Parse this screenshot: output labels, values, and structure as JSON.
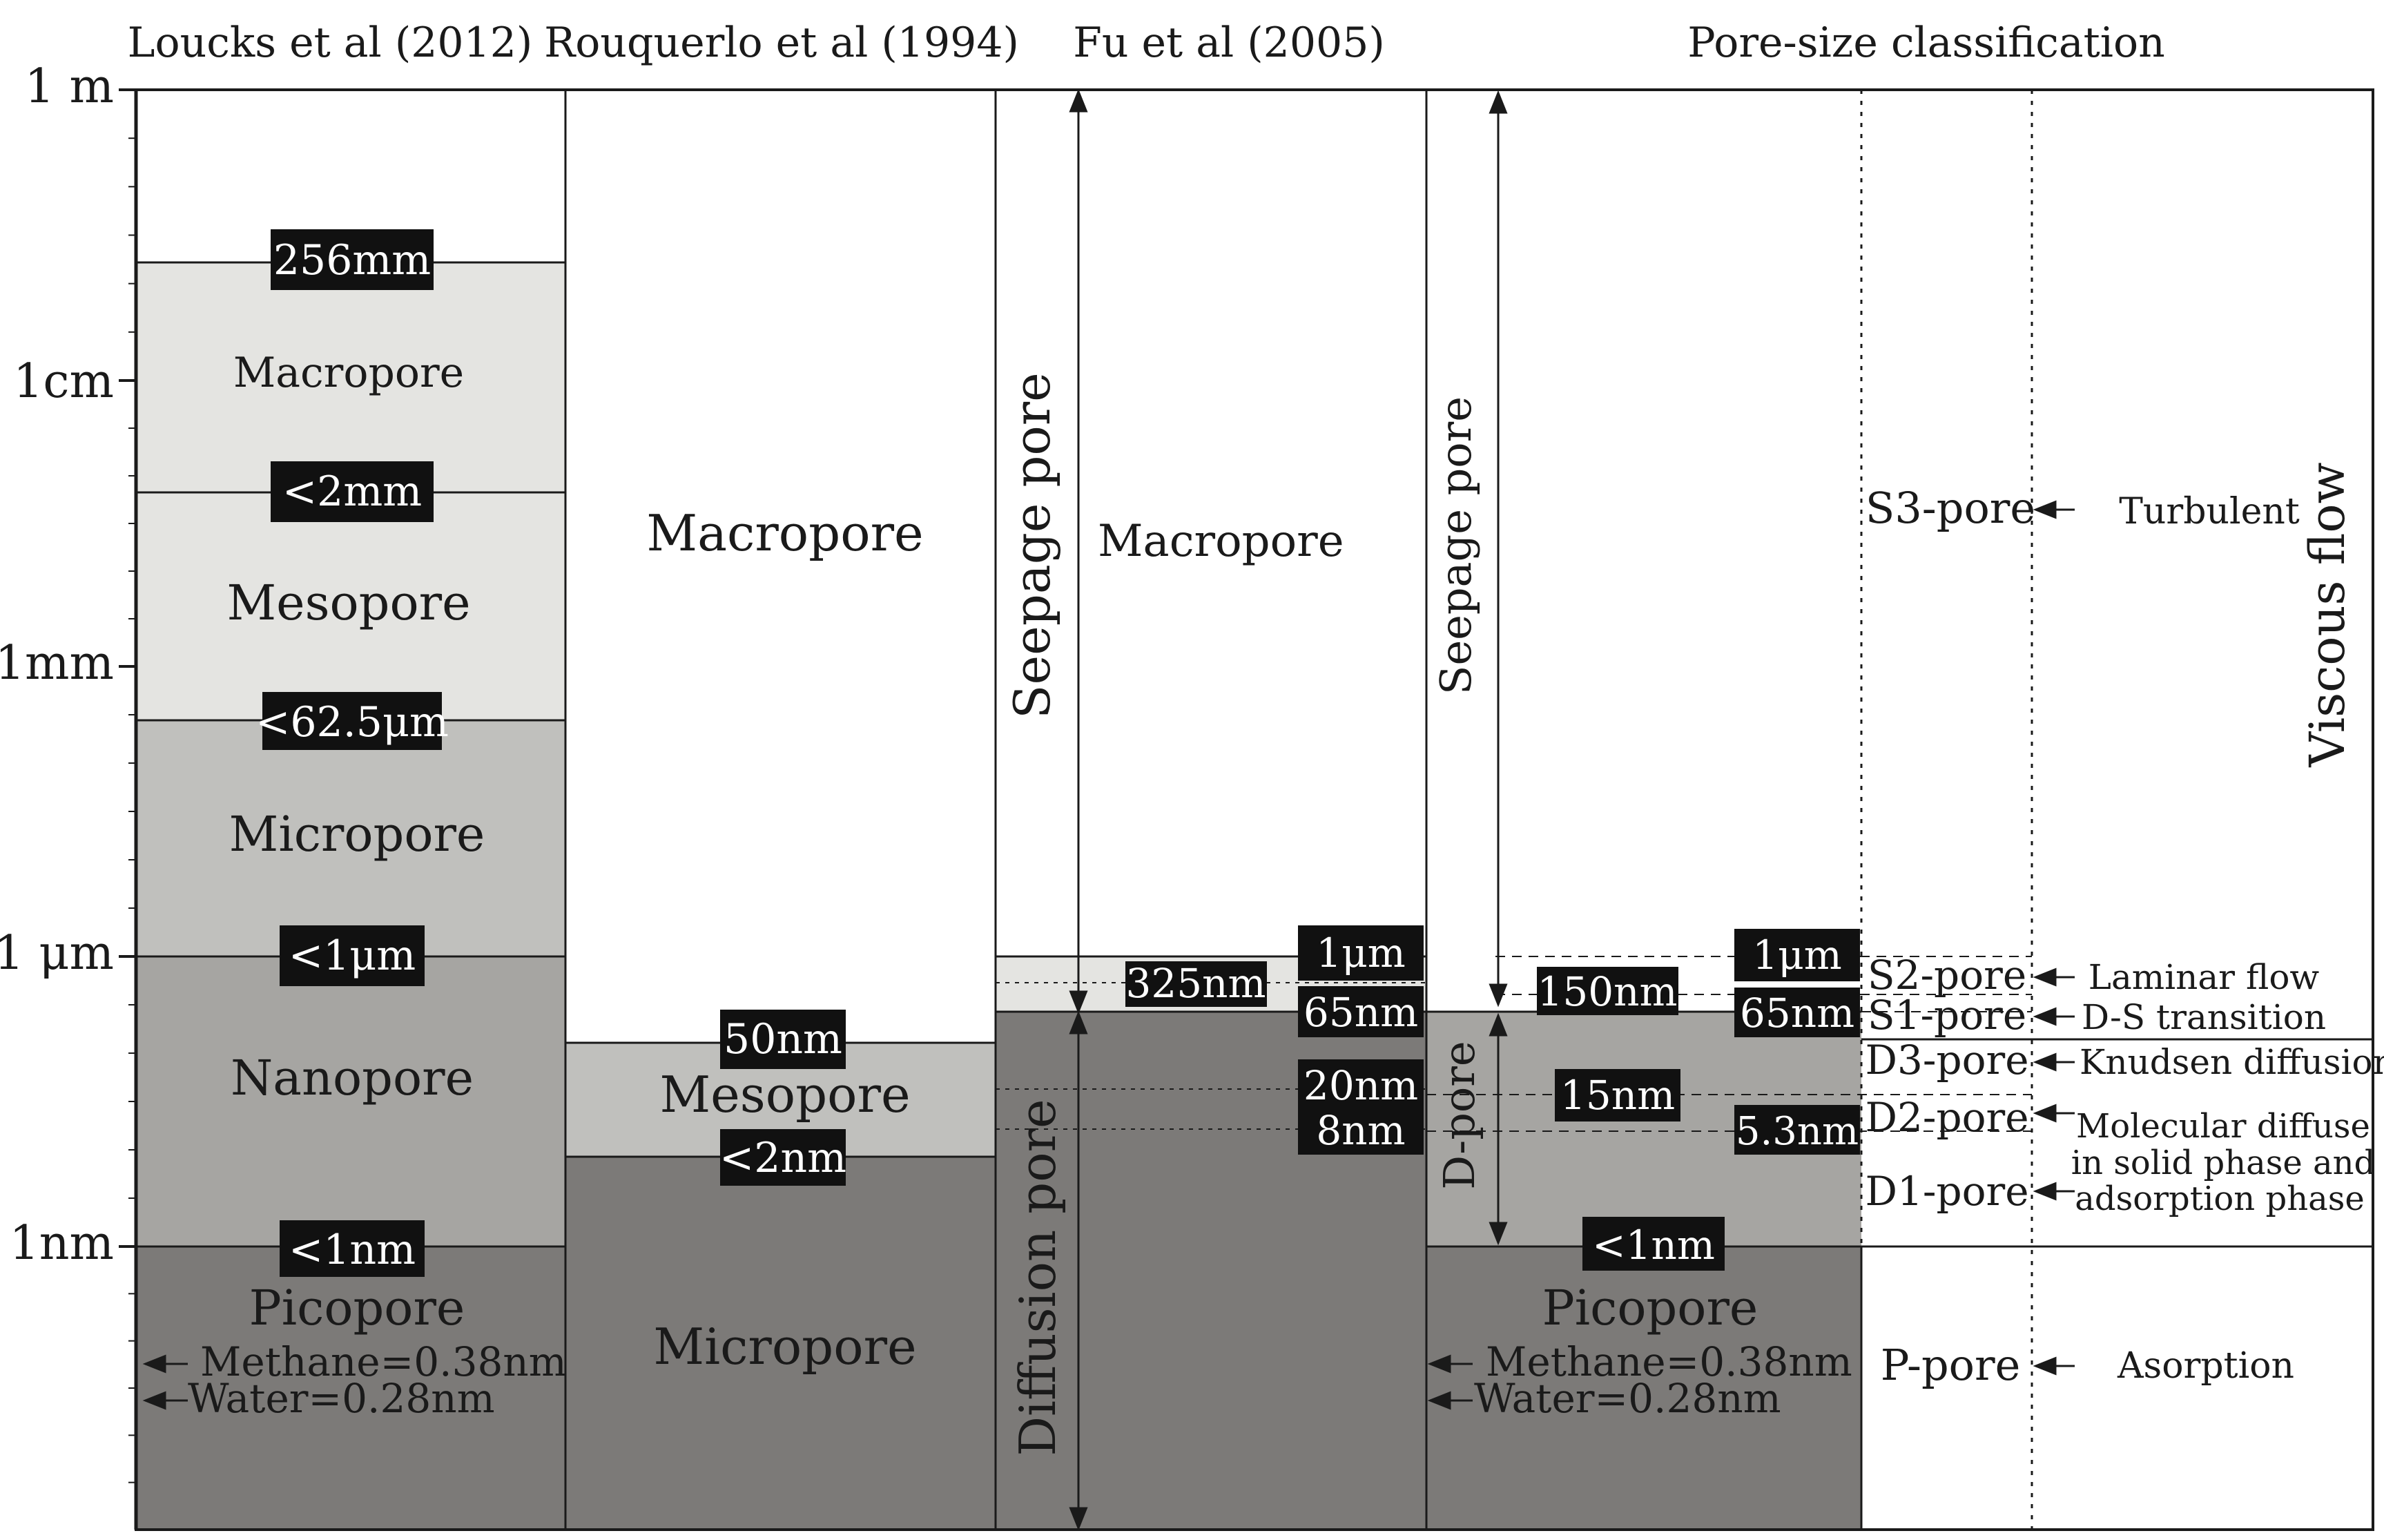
{
  "headers": {
    "loucks": "Loucks et al (2012)",
    "rouquerlo": "Rouquerlo et al (1994)",
    "fu": "Fu et al (2005)",
    "classification": "Pore-size classification"
  },
  "axis_ticks": [
    "1 m",
    "1cm",
    "1mm",
    "1 μm",
    "1nm"
  ],
  "loucks": {
    "macropore": "Macropore",
    "mesopore": "Mesopore",
    "micropore": "Micropore",
    "nanopore": "Nanopore",
    "picopore": "Picopore",
    "methane": "Methane=0.38nm",
    "water": "Water=0.28nm",
    "b256": "256mm",
    "b2mm": "<2mm",
    "b625": "<62.5μm",
    "b1um": "<1μm",
    "b1nm": "<1nm"
  },
  "rouquerlo": {
    "macropore": "Macropore",
    "mesopore": "Mesopore",
    "micropore": "Micropore",
    "b50nm": "50nm",
    "b2nm": "<2nm"
  },
  "fu": {
    "seepage": "Seepage pore",
    "macropore": "Macropore",
    "diffusion": "Diffusion pore",
    "b1um": "1μm",
    "b325": "325nm",
    "b65": "65nm",
    "b20": "20nm",
    "b8": "8nm"
  },
  "cls": {
    "seepage": "Seepage pore",
    "dpore": "D-pore",
    "picopore": "Picopore",
    "methane": "Methane=0.38nm",
    "water": "Water=0.28nm",
    "b1um": "1μm",
    "b150": "150nm",
    "b65": "65nm",
    "b15": "15nm",
    "b53": "5.3nm",
    "b1nm": "<1nm"
  },
  "pores": {
    "s3": "S3-pore",
    "s2": "S2-pore",
    "s1": "S1-pore",
    "d3": "D3-pore",
    "d2": "D2-pore",
    "d1": "D1-pore",
    "p": "P-pore"
  },
  "flow": {
    "turbulent": "Turbulent",
    "laminar": "Laminar flow",
    "ds": "D-S transition",
    "knudsen": "Knudsen diffusion",
    "molecular1": "Molecular diffuse",
    "molecular2": "in solid phase and",
    "molecular3": "adsorption phase",
    "asorption": "Asorption",
    "viscous": "Viscous flow"
  },
  "colors": {
    "light": "#e4e4e1",
    "mid": "#c0c0bd",
    "dark": "#a6a5a2",
    "darkest": "#7c7a78",
    "label_bg": "#111111"
  }
}
